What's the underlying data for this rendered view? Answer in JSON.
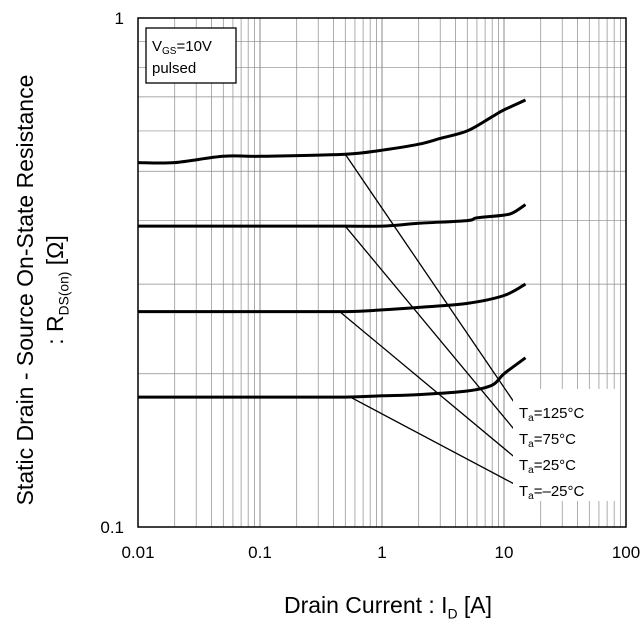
{
  "chart_data": {
    "type": "line",
    "xscale": "log",
    "yscale": "log",
    "xlim": [
      0.01,
      100
    ],
    "ylim": [
      0.1,
      1
    ],
    "xticks": [
      "0.01",
      "0.1",
      "1",
      "10",
      "100"
    ],
    "yticks": [
      "1",
      "0.1"
    ],
    "grid": true,
    "xlabel": {
      "prefix": "Drain Current : I",
      "sub": "D",
      "suffix": " [A]"
    },
    "ylabel": {
      "line1": "Static Drain - Source On-State Resistance",
      "prefix": ": R",
      "sub": "DS(on)",
      "suffix": " [Ω]"
    },
    "conditions": {
      "line1_prefix": "V",
      "line1_sub": "GS",
      "line1_suffix": "=10V",
      "line2": "pulsed"
    },
    "series": [
      {
        "name": "125°C",
        "label_prefix": "T",
        "label_sub": "a",
        "label_suffix": "=125°C",
        "x": [
          0.01,
          0.02,
          0.05,
          0.1,
          0.5,
          1,
          2,
          3,
          5,
          8,
          10,
          15
        ],
        "y": [
          0.52,
          0.52,
          0.535,
          0.535,
          0.54,
          0.55,
          0.565,
          0.58,
          0.6,
          0.64,
          0.66,
          0.69
        ]
      },
      {
        "name": "75°C",
        "label_prefix": "T",
        "label_sub": "a",
        "label_suffix": "=75°C",
        "x": [
          0.01,
          0.1,
          0.5,
          1,
          2,
          5,
          6,
          10,
          12,
          15
        ],
        "y": [
          0.39,
          0.39,
          0.39,
          0.39,
          0.395,
          0.4,
          0.405,
          0.41,
          0.415,
          0.43
        ]
      },
      {
        "name": "25°C",
        "label_prefix": "T",
        "label_sub": "a",
        "label_suffix": "=25°C",
        "x": [
          0.01,
          0.1,
          0.5,
          1,
          2,
          5,
          10,
          15
        ],
        "y": [
          0.265,
          0.265,
          0.265,
          0.267,
          0.27,
          0.275,
          0.285,
          0.3
        ]
      },
      {
        "name": "-25°C",
        "label_prefix": "T",
        "label_sub": "a",
        "label_suffix": "=–25°C",
        "x": [
          0.01,
          0.1,
          0.5,
          1,
          2,
          5,
          8,
          10,
          15
        ],
        "y": [
          0.18,
          0.18,
          0.18,
          0.181,
          0.182,
          0.185,
          0.19,
          0.2,
          0.215
        ]
      }
    ],
    "leader_points": [
      {
        "x": 0.5,
        "y": 0.54
      },
      {
        "x": 0.5,
        "y": 0.39
      },
      {
        "x": 0.45,
        "y": 0.265
      },
      {
        "x": 0.55,
        "y": 0.18
      }
    ]
  }
}
